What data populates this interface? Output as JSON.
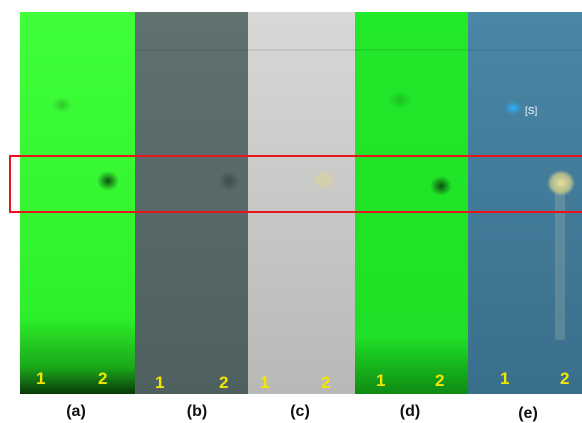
{
  "panels": [
    {
      "caption": "(a)",
      "lanes": [
        "1",
        "2"
      ]
    },
    {
      "caption": "(b)",
      "lanes": [
        "1",
        "2"
      ]
    },
    {
      "caption": "(c)",
      "lanes": [
        "1",
        "2"
      ]
    },
    {
      "caption": "(d)",
      "lanes": [
        "1",
        "2"
      ]
    },
    {
      "caption": "(e)",
      "lanes": [
        "1",
        "2"
      ],
      "marker": "[S]"
    }
  ]
}
